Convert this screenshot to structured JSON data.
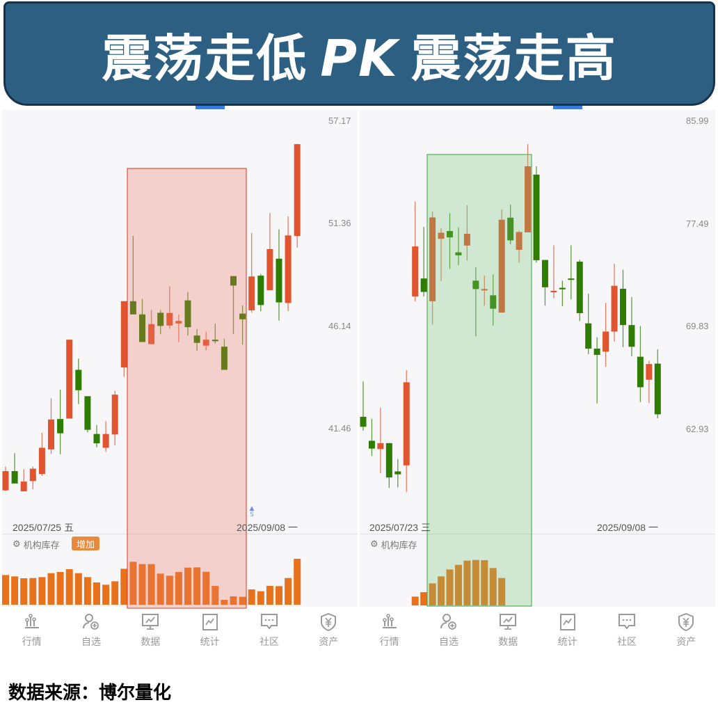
{
  "banner": {
    "left": "震荡走低",
    "pk": "PK",
    "right": "震荡走高"
  },
  "footer": "数据来源：博尔量化",
  "colors": {
    "up": "#e0552f",
    "down": "#2e7d00",
    "volume": "#e8721c",
    "banner": "#2c5f82",
    "highlight_left": "#e0301e",
    "highlight_right": "#3aa53a"
  },
  "left_panel": {
    "date_start": "2025/07/25 五",
    "date_end": "2025/09/08 一",
    "indicator": "机构库存",
    "badge": "增加",
    "marker": "▲ S"
  },
  "right_panel": {
    "date_start": "2025/07/23 三",
    "date_end": "2025/09/08 一",
    "indicator": "机构库存"
  },
  "nav": [
    {
      "label": "行情",
      "icon": "bar-chart-icon"
    },
    {
      "label": "自选",
      "icon": "user-add-icon"
    },
    {
      "label": "数据",
      "icon": "monitor-chart-icon"
    },
    {
      "label": "统计",
      "icon": "stats-icon"
    },
    {
      "label": "社区",
      "icon": "chat-icon"
    },
    {
      "label": "资产",
      "icon": "yen-shield-icon"
    }
  ],
  "chart_data": [
    {
      "type": "candlestick",
      "scale": "log",
      "y_ticks": [
        57.17,
        51.36,
        46.14,
        41.46
      ],
      "x_labels": [
        "2025/07/25 五",
        "2025/09/08 一"
      ],
      "highlight_range": [
        15,
        26
      ],
      "highlight_label": "震荡走低",
      "ohlc": [
        [
          38.9,
          39.88,
          38.88,
          39.69
        ],
        [
          39.69,
          40.44,
          39.18,
          39.18
        ],
        [
          38.86,
          39.77,
          38.86,
          39.26
        ],
        [
          39.28,
          39.88,
          38.94,
          39.79
        ],
        [
          39.57,
          41.31,
          39.49,
          40.67
        ],
        [
          40.6,
          42.83,
          40.4,
          41.89
        ],
        [
          41.91,
          43.21,
          40.4,
          41.29
        ],
        [
          41.93,
          45.53,
          41.93,
          45.53
        ],
        [
          44.12,
          44.64,
          42.57,
          43.19
        ],
        [
          42.92,
          42.92,
          41.33,
          41.44
        ],
        [
          41.26,
          41.65,
          40.69,
          40.86
        ],
        [
          40.67,
          41.82,
          40.5,
          41.26
        ],
        [
          41.24,
          43.16,
          40.77,
          42.99
        ],
        [
          44.23,
          47.4,
          43.8,
          47.4
        ],
        [
          47.4,
          50.74,
          46.75,
          46.75
        ],
        [
          46.75,
          47.51,
          45.42,
          45.42
        ],
        [
          45.32,
          46.97,
          45.32,
          46.28
        ],
        [
          46.83,
          46.97,
          45.79,
          46.19
        ],
        [
          46.21,
          48.14,
          46.05,
          46.82
        ],
        [
          46.31,
          46.75,
          45.42,
          46.43
        ],
        [
          47.44,
          47.86,
          45.73,
          46.13
        ],
        [
          45.73,
          46.04,
          45.01,
          45.38
        ],
        [
          45.25,
          45.91,
          45.03,
          45.53
        ],
        [
          45.53,
          46.3,
          45.35,
          45.46
        ],
        [
          45.2,
          45.58,
          44.12,
          44.12
        ],
        [
          48.66,
          48.66,
          45.81,
          48.18
        ],
        [
          46.79,
          47.19,
          45.3,
          46.51
        ],
        [
          46.95,
          50.9,
          46.83,
          48.64
        ],
        [
          48.68,
          48.77,
          46.91,
          47.21
        ],
        [
          47.95,
          51.97,
          47.95,
          50.05
        ],
        [
          49.55,
          51.09,
          46.45,
          47.34
        ],
        [
          47.31,
          51.79,
          46.91,
          50.77
        ],
        [
          50.74,
          55.85,
          50.12,
          55.85
        ]
      ],
      "indicator_values": [
        128,
        122,
        114,
        115,
        119,
        136,
        141,
        153,
        136,
        119,
        96,
        86,
        101,
        155,
        185,
        175,
        175,
        134,
        125,
        141,
        160,
        161,
        142,
        81,
        21,
        36,
        34,
        66,
        58,
        81,
        80,
        115,
        198
      ]
    },
    {
      "type": "candlestick",
      "scale": "log",
      "y_ticks": [
        85.99,
        77.49,
        69.83,
        62.93
      ],
      "x_labels": [
        "2025/07/23 三",
        "2025/09/08 一"
      ],
      "highlight_range": [
        8,
        19
      ],
      "highlight_label": "震荡走高",
      "ohlc": [
        [
          63.78,
          66.1,
          62.89,
          63.14
        ],
        [
          62.25,
          63.65,
          61.3,
          61.76
        ],
        [
          61.73,
          64.37,
          60.23,
          62.1
        ],
        [
          62.1,
          62.1,
          59.35,
          59.98
        ],
        [
          60.35,
          61.11,
          59.38,
          60.17
        ],
        [
          60.72,
          66.86,
          59.1,
          66.05
        ],
        [
          72.04,
          79.32,
          71.68,
          75.79
        ],
        [
          73.37,
          77.31,
          72.04,
          72.38
        ],
        [
          71.7,
          78.54,
          70.04,
          78.05
        ],
        [
          76.38,
          77.2,
          73.18,
          76.85
        ],
        [
          76.98,
          78.38,
          74.09,
          76.49
        ],
        [
          75.34,
          77.27,
          74.36,
          75.11
        ],
        [
          75.86,
          79.02,
          74.71,
          76.77
        ],
        [
          73.21,
          74.21,
          69.2,
          72.59
        ],
        [
          72.56,
          73.59,
          71.38,
          72.59
        ],
        [
          72.13,
          73.67,
          69.96,
          71.16
        ],
        [
          70.88,
          78.68,
          70.88,
          77.87
        ],
        [
          78.03,
          79.08,
          75.96,
          76.26
        ],
        [
          75.53,
          77.0,
          74.56,
          76.9
        ],
        [
          76.88,
          84.08,
          76.88,
          82.2
        ],
        [
          81.51,
          82.2,
          74.56,
          74.74
        ],
        [
          74.76,
          74.76,
          71.38,
          72.72
        ],
        [
          72.35,
          75.88,
          71.92,
          72.46
        ],
        [
          72.68,
          73.21,
          71.34,
          72.57
        ],
        [
          73.37,
          75.88,
          71.83,
          73.31
        ],
        [
          74.63,
          74.78,
          70.27,
          70.84
        ],
        [
          70.11,
          72.26,
          67.96,
          68.34
        ],
        [
          68.34,
          69.13,
          64.65,
          67.91
        ],
        [
          68.13,
          71.58,
          67.11,
          69.53
        ],
        [
          69.53,
          74.48,
          68.82,
          72.83
        ],
        [
          72.61,
          74.03,
          68.44,
          69.99
        ],
        [
          69.99,
          72.01,
          67.82,
          68.47
        ],
        [
          67.78,
          69.92,
          64.74,
          65.72
        ],
        [
          66.22,
          67.5,
          64.67,
          67.28
        ],
        [
          67.31,
          68.28,
          63.69,
          63.94
        ]
      ],
      "indicator_values": [
        null,
        null,
        null,
        null,
        null,
        null,
        38,
        57,
        95,
        125,
        155,
        175,
        193,
        196,
        195,
        161,
        118,
        null,
        null,
        null,
        null,
        null,
        null,
        null,
        null,
        null,
        null,
        null,
        null,
        null,
        null,
        null,
        null,
        null,
        null
      ]
    }
  ]
}
